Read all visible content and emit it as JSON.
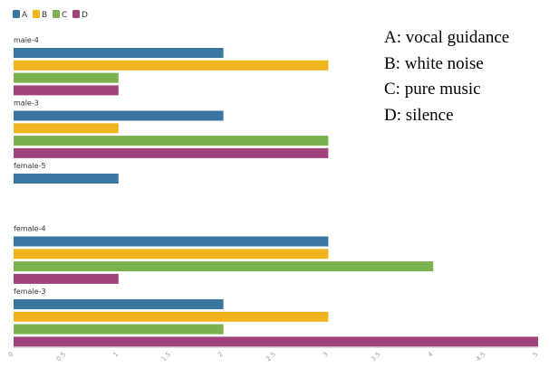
{
  "chart_data": {
    "type": "bar",
    "orientation": "horizontal",
    "categories": [
      "male-4",
      "male-3",
      "female-5",
      "female-4",
      "female-3"
    ],
    "series": [
      {
        "name": "A",
        "color": "#3a77a0",
        "values": [
          2,
          2,
          1,
          3,
          2
        ]
      },
      {
        "name": "B",
        "color": "#f1b41e",
        "values": [
          3,
          1,
          null,
          3,
          3
        ]
      },
      {
        "name": "C",
        "color": "#7ab34e",
        "values": [
          1,
          3,
          null,
          4,
          2
        ]
      },
      {
        "name": "D",
        "color": "#a0437a",
        "values": [
          1,
          3,
          null,
          1,
          5
        ]
      }
    ],
    "xlim": [
      0,
      5
    ],
    "xticks": [
      "0",
      "0.5",
      "1",
      "1.5",
      "2",
      "2.5",
      "3",
      "3.5",
      "4",
      "4.5",
      "5"
    ],
    "legend_position": "top-left"
  },
  "annotation": {
    "lines": [
      "A: vocal guidance",
      "B: white noise",
      "C: pure music",
      "D: silence"
    ]
  }
}
